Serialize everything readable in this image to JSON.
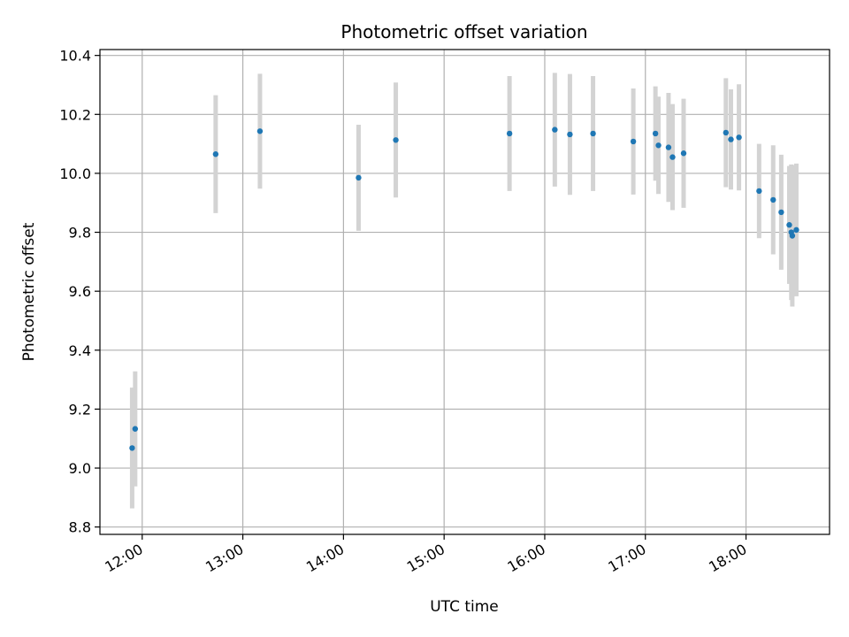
{
  "chart_data": {
    "type": "scatter",
    "title": "Photometric offset variation",
    "xlabel": "UTC time",
    "ylabel": "Photometric offset",
    "x_unit": "UTC hour (decimal)",
    "xlim": [
      11.58,
      18.83
    ],
    "ylim": [
      8.775,
      10.42
    ],
    "x_ticks": [
      12,
      13,
      14,
      15,
      16,
      17,
      18
    ],
    "x_tick_labels": [
      "12:00",
      "13:00",
      "14:00",
      "15:00",
      "16:00",
      "17:00",
      "18:00"
    ],
    "y_ticks": [
      8.8,
      9.0,
      9.2,
      9.4,
      9.6,
      9.8,
      10.0,
      10.2,
      10.4
    ],
    "y_tick_labels": [
      "8.8",
      "9.0",
      "9.2",
      "9.4",
      "9.6",
      "9.8",
      "10.0",
      "10.2",
      "10.4"
    ],
    "grid": true,
    "point_color": "#1f77b4",
    "errorbar_color": "#d3d3d3",
    "points": [
      {
        "x": 11.9,
        "y": 9.068,
        "err": 0.205
      },
      {
        "x": 11.93,
        "y": 9.133,
        "err": 0.195
      },
      {
        "x": 12.73,
        "y": 10.065,
        "err": 0.2
      },
      {
        "x": 13.17,
        "y": 10.143,
        "err": 0.195
      },
      {
        "x": 14.15,
        "y": 9.985,
        "err": 0.18
      },
      {
        "x": 14.52,
        "y": 10.113,
        "err": 0.195
      },
      {
        "x": 15.65,
        "y": 10.135,
        "err": 0.195
      },
      {
        "x": 16.1,
        "y": 10.148,
        "err": 0.193
      },
      {
        "x": 16.25,
        "y": 10.132,
        "err": 0.205
      },
      {
        "x": 16.48,
        "y": 10.135,
        "err": 0.195
      },
      {
        "x": 16.88,
        "y": 10.108,
        "err": 0.18
      },
      {
        "x": 17.1,
        "y": 10.135,
        "err": 0.16
      },
      {
        "x": 17.13,
        "y": 10.095,
        "err": 0.165
      },
      {
        "x": 17.23,
        "y": 10.088,
        "err": 0.185
      },
      {
        "x": 17.27,
        "y": 10.055,
        "err": 0.18
      },
      {
        "x": 17.38,
        "y": 10.068,
        "err": 0.185
      },
      {
        "x": 17.8,
        "y": 10.138,
        "err": 0.185
      },
      {
        "x": 17.85,
        "y": 10.115,
        "err": 0.17
      },
      {
        "x": 17.93,
        "y": 10.122,
        "err": 0.18
      },
      {
        "x": 18.13,
        "y": 9.94,
        "err": 0.16
      },
      {
        "x": 18.27,
        "y": 9.91,
        "err": 0.185
      },
      {
        "x": 18.35,
        "y": 9.868,
        "err": 0.195
      },
      {
        "x": 18.43,
        "y": 9.825,
        "err": 0.2
      },
      {
        "x": 18.45,
        "y": 9.8,
        "err": 0.23
      },
      {
        "x": 18.46,
        "y": 9.788,
        "err": 0.24
      },
      {
        "x": 18.5,
        "y": 9.808,
        "err": 0.225
      }
    ]
  }
}
